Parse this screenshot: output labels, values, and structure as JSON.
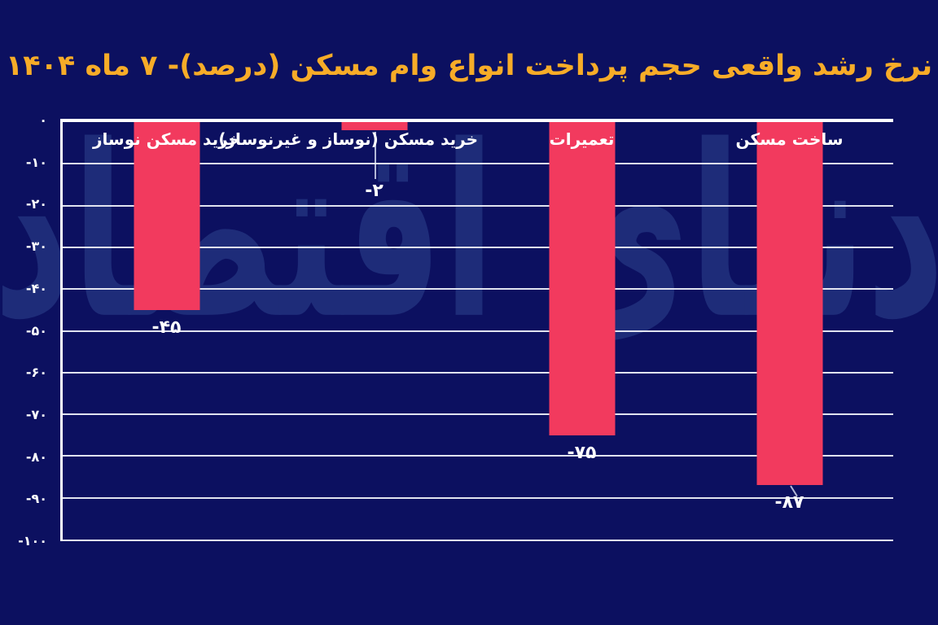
{
  "title": "نرخ رشد واقعی حجم پرداخت انواع وام مسکن (درصد)- ۷ ماه ۱۴۰۴",
  "watermark": "دنیای اقتصاد",
  "colors": {
    "background": "#0C1060",
    "bar": "#F23A5E",
    "title": "#F7AC28",
    "axis_text": "#FFFFFF",
    "gridline": "#F2F4FB",
    "watermark": "#1E2C79"
  },
  "chart_data": {
    "type": "bar",
    "orientation": "vertical",
    "rtl": true,
    "title": "نرخ رشد واقعی حجم پرداخت انواع وام مسکن (درصد)- ۷ ماه ۱۴۰۴",
    "categories": [
      "خرید مسکن نوساز",
      "خرید مسکن (نوساز و غیرنوساز)",
      "تعمیرات",
      "ساخت مسکن"
    ],
    "values": [
      -45,
      -2,
      -75,
      -87
    ],
    "value_labels": [
      "-۴۵",
      "-۲",
      "-۷۵",
      "-۸۷"
    ],
    "ylim": [
      -100,
      0
    ],
    "yticks": [
      0,
      -10,
      -20,
      -30,
      -40,
      -50,
      -60,
      -70,
      -80,
      -90,
      -100
    ],
    "ytick_labels": [
      "۰",
      "-۱۰",
      "-۲۰",
      "-۳۰",
      "-۴۰",
      "-۵۰",
      "-۶۰",
      "-۷۰",
      "-۸۰",
      "-۹۰",
      "-۱۰۰"
    ],
    "grid": true,
    "legend": false
  }
}
